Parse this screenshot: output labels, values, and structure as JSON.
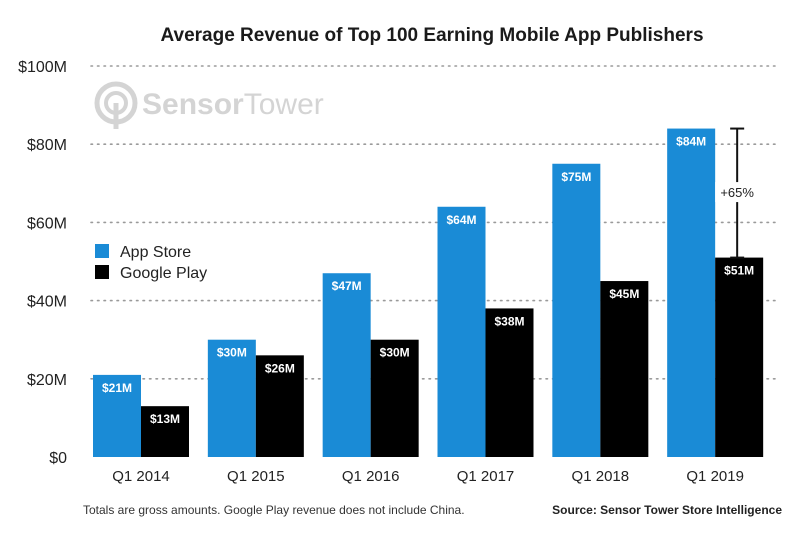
{
  "chart_data": {
    "type": "bar",
    "title": "Average Revenue of Top 100 Earning Mobile App Publishers",
    "xlabel": "",
    "ylabel": "",
    "ylim": [
      0,
      100
    ],
    "y_ticks": [
      {
        "value": 0,
        "label": "$0"
      },
      {
        "value": 20,
        "label": "$20M"
      },
      {
        "value": 40,
        "label": "$40M"
      },
      {
        "value": 60,
        "label": "$60M"
      },
      {
        "value": 80,
        "label": "$80M"
      },
      {
        "value": 100,
        "label": "$100M"
      }
    ],
    "grid": true,
    "categories": [
      "Q1 2014",
      "Q1 2015",
      "Q1 2016",
      "Q1 2017",
      "Q1 2018",
      "Q1 2019"
    ],
    "series": [
      {
        "name": "App Store",
        "color": "#1A8BD6",
        "values": [
          21,
          30,
          47,
          64,
          75,
          84
        ],
        "labels": [
          "$21M",
          "$30M",
          "$47M",
          "$64M",
          "$75M",
          "$84M"
        ]
      },
      {
        "name": "Google Play",
        "color": "#000000",
        "values": [
          13,
          26,
          30,
          38,
          45,
          51
        ],
        "labels": [
          "$13M",
          "$26M",
          "$30M",
          "$38M",
          "$45M",
          "$51M"
        ]
      }
    ],
    "legend_position": "middle-left",
    "annotation": {
      "text": "+65%",
      "category": "Q1 2019",
      "from_value": 51,
      "to_value": 84
    }
  },
  "watermark": {
    "brand_a": "Sensor",
    "brand_b": "Tower",
    "icon": "sensor-tower-logo-icon"
  },
  "footnote": "Totals are gross amounts. Google Play revenue does not include China.",
  "source": "Source: Sensor Tower Store Intelligence"
}
